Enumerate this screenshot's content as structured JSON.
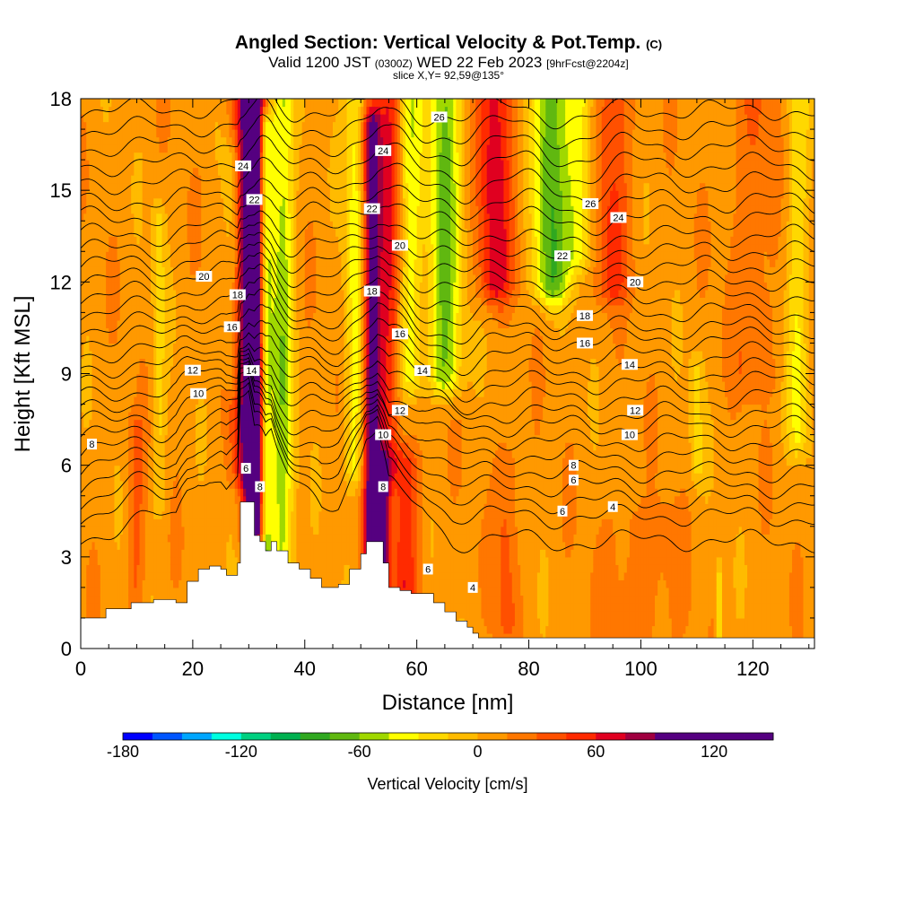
{
  "title": {
    "main": "Angled Section: Vertical Velocity & Pot.Temp.",
    "unit": "(C)",
    "valid": "Valid 1200 JST",
    "utc": "(0300Z)",
    "date": "WED 22 Feb 2023",
    "fcst": "[9hrFcst@2204z]",
    "slice": "slice X,Y= 92,59@135°"
  },
  "chart_data": {
    "type": "heatmap",
    "xlabel": "Distance [nm]",
    "ylabel": "Height [Kft MSL]",
    "xlim": [
      0,
      131
    ],
    "ylim": [
      0,
      18
    ],
    "x_ticks": [
      0,
      20,
      40,
      60,
      80,
      100,
      120
    ],
    "y_ticks": [
      0,
      3,
      6,
      9,
      12,
      15,
      18
    ],
    "colorbar": {
      "label": "Vertical Velocity [cm/s]",
      "min": -180,
      "max": 150,
      "step": 15,
      "tick_values": [
        -180,
        -120,
        -60,
        0,
        60,
        120
      ],
      "tick_labels": [
        "-180",
        "-120",
        "-60",
        "0",
        "60",
        "120"
      ],
      "colors": [
        "#0000ff",
        "#0055ff",
        "#00a6ff",
        "#00ffe0",
        "#00d080",
        "#00b050",
        "#30a820",
        "#60b810",
        "#a0d800",
        "#ffff00",
        "#ffd800",
        "#ffbb00",
        "#ff9900",
        "#ff7700",
        "#ff5000",
        "#ff2a00",
        "#e00020",
        "#a00040",
        "#550080"
      ]
    },
    "terrain_profile": {
      "x": [
        0,
        4.5,
        9,
        13,
        17,
        19,
        21,
        23,
        25,
        26,
        28,
        28.5,
        30,
        31,
        32,
        33,
        34,
        35,
        37,
        39,
        41,
        43,
        46,
        48,
        50,
        51,
        53,
        54,
        55,
        57,
        59,
        61,
        63,
        65,
        67,
        69,
        70,
        71,
        75,
        90,
        131
      ],
      "height": [
        1.0,
        1.3,
        1.5,
        1.6,
        1.5,
        2.2,
        2.6,
        2.7,
        2.6,
        2.4,
        2.8,
        4.8,
        4.8,
        3.7,
        3.5,
        3.2,
        3.5,
        3.2,
        2.8,
        2.6,
        2.3,
        2.0,
        2.1,
        2.6,
        3.1,
        3.5,
        3.5,
        2.8,
        2.0,
        1.9,
        1.8,
        1.8,
        1.5,
        1.2,
        0.9,
        0.7,
        0.5,
        0.35,
        0.35,
        0.35,
        0.35
      ]
    },
    "velocity_features": [
      {
        "x": 31,
        "width": 2.0,
        "zmin": 4.0,
        "zmax": 18,
        "w": 130
      },
      {
        "x": 33,
        "width": 1.3,
        "zmin": 3.0,
        "zmax": 17,
        "w": -80
      },
      {
        "x": 36,
        "width": 2.0,
        "zmin": 3.0,
        "zmax": 18,
        "w": -60
      },
      {
        "x": 29,
        "width": 2.5,
        "zmin": 6.0,
        "zmax": 18,
        "w": 45
      },
      {
        "x": 27,
        "width": 1.5,
        "zmin": 9.0,
        "zmax": 16,
        "w": -30
      },
      {
        "x": 52,
        "width": 1.6,
        "zmin": 3.0,
        "zmax": 17,
        "w": 100
      },
      {
        "x": 49,
        "width": 1.8,
        "zmin": 6.0,
        "zmax": 18,
        "w": -45
      },
      {
        "x": 55,
        "width": 2.0,
        "zmin": 6.0,
        "zmax": 18,
        "w": 50
      },
      {
        "x": 54,
        "width": 1.2,
        "zmin": 1.5,
        "zmax": 5.5,
        "w": 85
      },
      {
        "x": 65,
        "width": 2.8,
        "zmin": 9.0,
        "zmax": 18,
        "w": -70
      },
      {
        "x": 59,
        "width": 2.2,
        "zmin": 9.0,
        "zmax": 18,
        "w": -45
      },
      {
        "x": 74,
        "width": 3.0,
        "zmin": 12.0,
        "zmax": 18,
        "w": 60
      },
      {
        "x": 84,
        "width": 3.0,
        "zmin": 12.0,
        "zmax": 18,
        "w": -80
      },
      {
        "x": 89,
        "width": 2.5,
        "zmin": 13.0,
        "zmax": 18,
        "w": -45
      },
      {
        "x": 95,
        "width": 3.0,
        "zmin": 12.0,
        "zmax": 18,
        "w": 40
      },
      {
        "x": 14,
        "width": 1.2,
        "zmin": 5.0,
        "zmax": 14,
        "w": -25
      },
      {
        "x": 10,
        "width": 1.5,
        "zmin": 2.0,
        "zmax": 7,
        "w": 25
      },
      {
        "x": 58,
        "width": 2.5,
        "zmin": 2.0,
        "zmax": 6,
        "w": 45
      },
      {
        "x": 76,
        "width": 2.0,
        "zmin": 1.0,
        "zmax": 6,
        "w": 28
      },
      {
        "x": 110,
        "width": 1.2,
        "zmin": 6.0,
        "zmax": 9,
        "w": -25
      },
      {
        "x": 128,
        "width": 2.0,
        "zmin": 7.0,
        "zmax": 18,
        "w": -35
      },
      {
        "x": 114,
        "width": 0.6,
        "zmin": 0.3,
        "zmax": 2.0,
        "w": -40
      },
      {
        "x": 100,
        "width": 6.0,
        "zmin": 0.3,
        "zmax": 4.0,
        "w": 18
      },
      {
        "x": 120,
        "width": 4.0,
        "zmin": 9.0,
        "zmax": 18,
        "w": 20
      }
    ],
    "theta_contours": [
      {
        "base": 3.5,
        "label": "",
        "label_x": null
      },
      {
        "base": 4.3,
        "label": "4",
        "label_x": 95
      },
      {
        "base": 4.8,
        "label": "",
        "label_x": null
      },
      {
        "base": 5.3,
        "label": "6",
        "label_x": 88
      },
      {
        "base": 5.8,
        "label": "",
        "label_x": null
      },
      {
        "base": 6.3,
        "label": "8",
        "label_x": 2
      },
      {
        "base": 6.8,
        "label": "",
        "label_x": null
      },
      {
        "base": 7.3,
        "label": "10",
        "label_x": 21
      },
      {
        "base": 7.7,
        "label": "",
        "label_x": null
      },
      {
        "base": 8.2,
        "label": "12",
        "label_x": 20
      },
      {
        "base": 8.7,
        "label": "",
        "label_x": null
      },
      {
        "base": 9.1,
        "label": "14",
        "label_x": 98
      },
      {
        "base": 9.6,
        "label": "",
        "label_x": null
      },
      {
        "base": 10.1,
        "label": "16",
        "label_x": 27
      },
      {
        "base": 10.5,
        "label": "",
        "label_x": null
      },
      {
        "base": 11.0,
        "label": "18",
        "label_x": 28
      },
      {
        "base": 11.5,
        "label": "",
        "label_x": null
      },
      {
        "base": 12.0,
        "label": "20",
        "label_x": 22
      },
      {
        "base": 12.5,
        "label": "",
        "label_x": null
      },
      {
        "base": 13.0,
        "label": "22",
        "label_x": 86
      },
      {
        "base": 13.5,
        "label": "",
        "label_x": null
      },
      {
        "base": 14.1,
        "label": "24",
        "label_x": 96
      },
      {
        "base": 14.6,
        "label": "",
        "label_x": null
      },
      {
        "base": 15.2,
        "label": "26",
        "label_x": 91
      },
      {
        "base": 15.8,
        "label": "",
        "label_x": null
      },
      {
        "base": 16.4,
        "label": "",
        "label_x": null
      },
      {
        "base": 17.0,
        "label": "",
        "label_x": null
      },
      {
        "base": 17.6,
        "label": "",
        "label_x": null
      }
    ],
    "extra_labels": [
      {
        "x": 29.5,
        "height": 5.9,
        "label": "6"
      },
      {
        "x": 32,
        "height": 5.3,
        "label": "8"
      },
      {
        "x": 54,
        "height": 5.3,
        "label": "8"
      },
      {
        "x": 62,
        "height": 2.6,
        "label": "6"
      },
      {
        "x": 70,
        "height": 2.0,
        "label": "4"
      },
      {
        "x": 54,
        "height": 7.0,
        "label": "10"
      },
      {
        "x": 57,
        "height": 7.8,
        "label": "12"
      },
      {
        "x": 61,
        "height": 9.1,
        "label": "14"
      },
      {
        "x": 57,
        "height": 10.3,
        "label": "16"
      },
      {
        "x": 52,
        "height": 11.7,
        "label": "18"
      },
      {
        "x": 57,
        "height": 13.2,
        "label": "20"
      },
      {
        "x": 52,
        "height": 14.4,
        "label": "22"
      },
      {
        "x": 54,
        "height": 16.3,
        "label": "24"
      },
      {
        "x": 64,
        "height": 17.4,
        "label": "26"
      },
      {
        "x": 30.5,
        "height": 9.1,
        "label": "14"
      },
      {
        "x": 31,
        "height": 14.7,
        "label": "22"
      },
      {
        "x": 29,
        "height": 15.8,
        "label": "24"
      },
      {
        "x": 90,
        "height": 10.0,
        "label": "16"
      },
      {
        "x": 90,
        "height": 10.9,
        "label": "18"
      },
      {
        "x": 99,
        "height": 12.0,
        "label": "20"
      },
      {
        "x": 99,
        "height": 7.8,
        "label": "12"
      },
      {
        "x": 98,
        "height": 7.0,
        "label": "10"
      },
      {
        "x": 86,
        "height": 4.5,
        "label": "6"
      },
      {
        "x": 88,
        "height": 6.0,
        "label": "8"
      }
    ]
  }
}
